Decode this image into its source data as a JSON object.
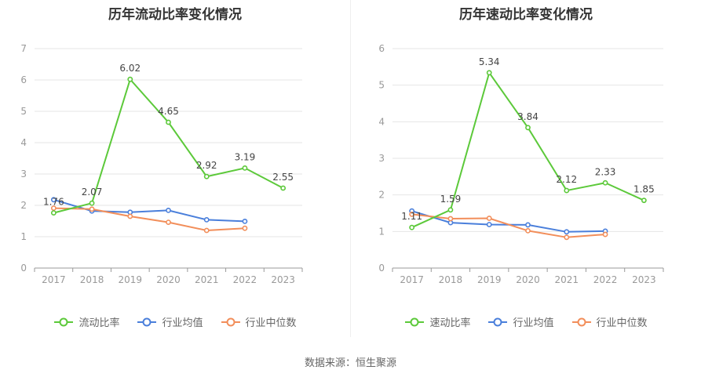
{
  "source_label": "数据来源：恒生聚源",
  "chart_data": [
    {
      "type": "line",
      "title": "历年流动比率变化情况",
      "categories": [
        "2017",
        "2018",
        "2019",
        "2020",
        "2021",
        "2022",
        "2023"
      ],
      "ylim": [
        0,
        7
      ],
      "yticks": [
        0,
        1,
        2,
        3,
        4,
        5,
        6,
        7
      ],
      "grid": true,
      "legend_position": "bottom",
      "series": [
        {
          "name": "流动比率",
          "color": "#5cc93a",
          "values": [
            1.76,
            2.07,
            6.02,
            4.65,
            2.92,
            3.19,
            2.55
          ],
          "labels": [
            "1.76",
            "2.07",
            "6.02",
            "4.65",
            "2.92",
            "3.19",
            "2.55"
          ]
        },
        {
          "name": "行业均值",
          "color": "#4a7fdb",
          "values": [
            2.18,
            1.82,
            1.78,
            1.84,
            1.54,
            1.49,
            null
          ]
        },
        {
          "name": "行业中位数",
          "color": "#f28e5a",
          "values": [
            1.91,
            1.88,
            1.65,
            1.46,
            1.2,
            1.27,
            null
          ]
        }
      ]
    },
    {
      "type": "line",
      "title": "历年速动比率变化情况",
      "categories": [
        "2017",
        "2018",
        "2019",
        "2020",
        "2021",
        "2022",
        "2023"
      ],
      "ylim": [
        0,
        6
      ],
      "yticks": [
        0,
        1,
        2,
        3,
        4,
        5,
        6
      ],
      "grid": true,
      "legend_position": "bottom",
      "series": [
        {
          "name": "速动比率",
          "color": "#5cc93a",
          "values": [
            1.11,
            1.59,
            5.34,
            3.84,
            2.12,
            2.33,
            1.85
          ],
          "labels": [
            "1.11",
            "1.59",
            "5.34",
            "3.84",
            "2.12",
            "2.33",
            "1.85"
          ]
        },
        {
          "name": "行业均值",
          "color": "#4a7fdb",
          "values": [
            1.56,
            1.24,
            1.19,
            1.18,
            0.99,
            1.01,
            null
          ]
        },
        {
          "name": "行业中位数",
          "color": "#f28e5a",
          "values": [
            1.47,
            1.35,
            1.36,
            1.02,
            0.84,
            0.92,
            null
          ]
        }
      ]
    }
  ]
}
